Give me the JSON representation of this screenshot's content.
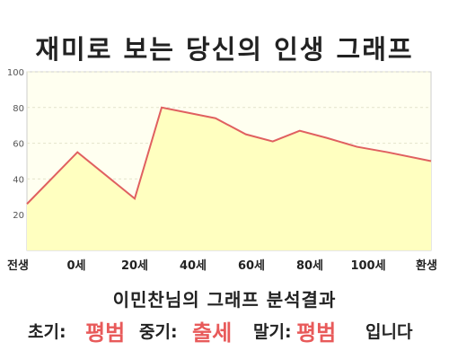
{
  "header": {
    "title": "재미로 보는 당신의 인생 그래프"
  },
  "chart_data": {
    "type": "area",
    "x_labels": [
      "전생",
      "0세",
      "20세",
      "40세",
      "60세",
      "80세",
      "100세",
      "환생"
    ],
    "x": [
      -15,
      0,
      17,
      25,
      33,
      41,
      50,
      58,
      66,
      74,
      83,
      92,
      105
    ],
    "values": [
      26,
      55,
      29,
      80,
      77,
      74,
      65,
      61,
      67,
      63,
      58,
      55,
      50
    ],
    "ylim": [
      0,
      100
    ],
    "y_ticks": [
      "20",
      "40",
      "60",
      "80",
      "100"
    ],
    "grid": true,
    "colors": {
      "line": "#e06060",
      "fill": "#ffffc0",
      "plot_bg": "#fffff0"
    }
  },
  "result": {
    "subtitle": "이민찬님의 그래프 분석결과",
    "early_label": "초기:",
    "early_value": "평범",
    "mid_label": "중기:",
    "mid_value": "출세",
    "late_label": "말기:",
    "late_value": "평범",
    "ending": "입니다"
  }
}
